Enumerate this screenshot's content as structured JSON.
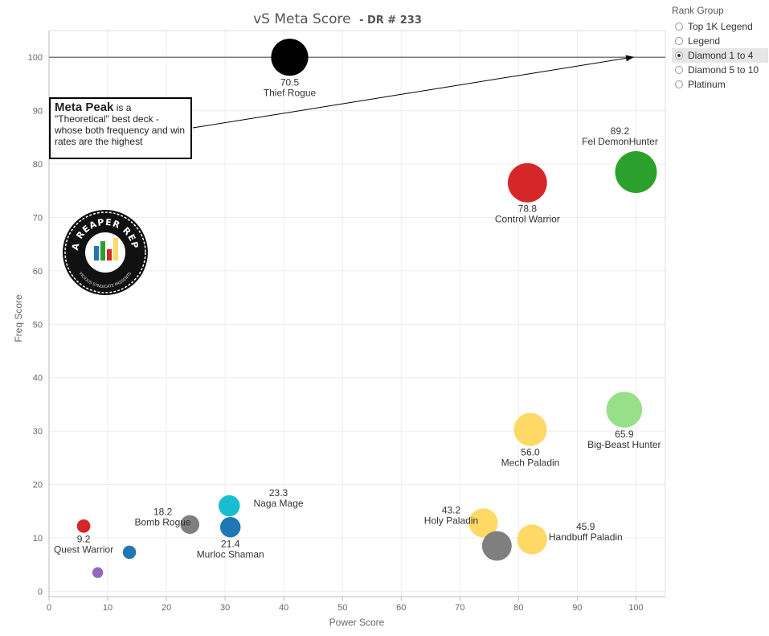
{
  "chart_data": {
    "type": "scatter",
    "title": "vS Meta Score",
    "subtitle": "- DR # 233",
    "xlabel": "Power Score",
    "ylabel": "Freq Score",
    "xlim": [
      0,
      105
    ],
    "ylim": [
      -1,
      105
    ],
    "xticks": [
      0,
      10,
      20,
      30,
      40,
      50,
      60,
      70,
      80,
      90,
      100
    ],
    "yticks": [
      0,
      10,
      20,
      30,
      40,
      50,
      60,
      70,
      80,
      90,
      100
    ],
    "grid": true,
    "meta_peak_line": 100,
    "points": [
      {
        "deck": "Thief Rogue",
        "score": "70.5",
        "x": 41.0,
        "y": 100.0,
        "size": 70.5,
        "color": "#000000",
        "label_pos": "below"
      },
      {
        "deck": "Fel DemonHunter",
        "score": "89.2",
        "x": 100.0,
        "y": 78.5,
        "size": 89.2,
        "color": "#2ca02c",
        "label_pos": "above"
      },
      {
        "deck": "Control Warrior",
        "score": "78.8",
        "x": 81.5,
        "y": 76.5,
        "size": 78.8,
        "color": "#d62728",
        "label_pos": "below"
      },
      {
        "deck": "Big-Beast Hunter",
        "score": "65.9",
        "x": 98.0,
        "y": 34.0,
        "size": 65.9,
        "color": "#98df8a",
        "label_pos": "below"
      },
      {
        "deck": "Mech Paladin",
        "score": "56.0",
        "x": 82.0,
        "y": 30.3,
        "size": 56.0,
        "color": "#ffd966",
        "label_pos": "below"
      },
      {
        "deck": "Holy Paladin",
        "score": "43.2",
        "x": 74.0,
        "y": 12.8,
        "size": 43.2,
        "color": "#ffd966",
        "label_pos": "left"
      },
      {
        "deck": "Handbuff Paladin",
        "score": "45.9",
        "x": 82.3,
        "y": 9.7,
        "size": 45.9,
        "color": "#ffd966",
        "label_pos": "right"
      },
      {
        "deck": "",
        "score": "",
        "x": 76.3,
        "y": 8.5,
        "size": 45.0,
        "color": "#7f7f7f",
        "label_pos": "none"
      },
      {
        "deck": "Naga Mage",
        "score": "23.3",
        "x": 30.7,
        "y": 16.0,
        "size": 23.3,
        "color": "#17becf",
        "label_pos": "right"
      },
      {
        "deck": "Murloc Shaman",
        "score": "21.4",
        "x": 30.9,
        "y": 12.0,
        "size": 21.4,
        "color": "#1f77b4",
        "label_pos": "below"
      },
      {
        "deck": "Bomb Rogue",
        "score": "18.2",
        "x": 24.0,
        "y": 12.5,
        "size": 18.2,
        "color": "#7f7f7f",
        "label_pos": "left"
      },
      {
        "deck": "Quest Warrior",
        "score": "9.2",
        "x": 5.9,
        "y": 12.2,
        "size": 9.2,
        "color": "#d62728",
        "label_pos": "below"
      },
      {
        "deck": "",
        "score": "",
        "x": 13.7,
        "y": 7.3,
        "size": 9.0,
        "color": "#1f77b4",
        "label_pos": "none"
      },
      {
        "deck": "",
        "score": "",
        "x": 8.3,
        "y": 3.5,
        "size": 6.0,
        "color": "#9467bd",
        "label_pos": "none"
      }
    ]
  },
  "legend": {
    "title": "Rank Group",
    "items": [
      {
        "label": "Top 1K Legend",
        "selected": false
      },
      {
        "label": "Legend",
        "selected": false
      },
      {
        "label": "Diamond 1 to 4",
        "selected": true
      },
      {
        "label": "Diamond 5 to 10",
        "selected": false
      },
      {
        "label": "Platinum",
        "selected": false
      }
    ]
  },
  "annotation": {
    "strong": "Meta Peak",
    "rest": " is a \"Theoretical\" best deck - whose both frequency and win rates are the highest"
  },
  "logo": {
    "text_top": "DATA REAPER REPORT",
    "text_bottom": "VICIOUS SYNDICATE PRESENTS"
  }
}
